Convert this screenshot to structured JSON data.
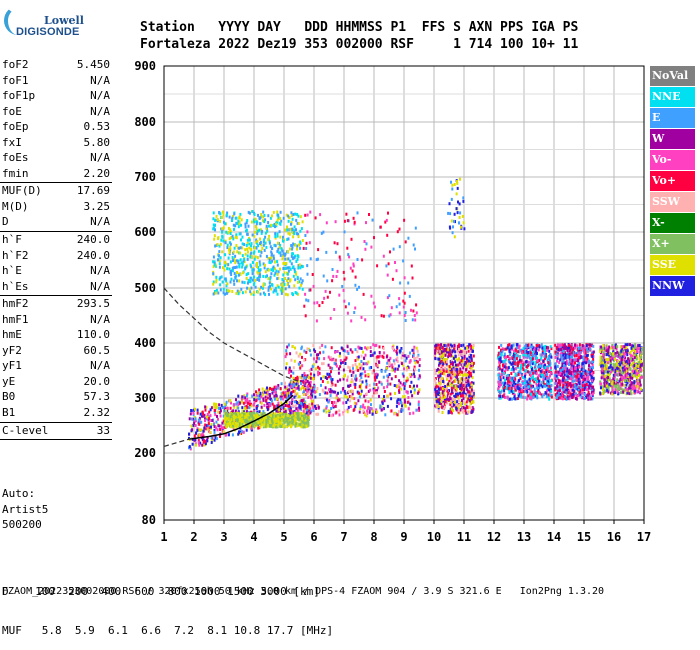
{
  "logo": {
    "line1": "Lowell",
    "line2": "DIGISONDE"
  },
  "header": {
    "line1": "Station   YYYY DAY   DDD HHMMSS P1  FFS S AXN PPS IGA PS",
    "line2": "Fortaleza 2022 Dez19 353 002000 RSF     1 714 100 10+ 11"
  },
  "params": [
    {
      "name": "foF2",
      "value": "5.450"
    },
    {
      "name": "foF1",
      "value": "N/A"
    },
    {
      "name": "foF1p",
      "value": "N/A"
    },
    {
      "name": "foE",
      "value": "N/A"
    },
    {
      "name": "foEp",
      "value": "0.53"
    },
    {
      "name": "fxI",
      "value": "5.80"
    },
    {
      "name": "foEs",
      "value": "N/A"
    },
    {
      "name": "fmin",
      "value": "2.20"
    },
    {
      "sep": true
    },
    {
      "name": "MUF(D)",
      "value": "17.69"
    },
    {
      "name": "M(D)",
      "value": "3.25"
    },
    {
      "name": "D",
      "value": "N/A"
    },
    {
      "sep": true
    },
    {
      "name": "h`F",
      "value": "240.0"
    },
    {
      "name": "h`F2",
      "value": "240.0"
    },
    {
      "name": "h`E",
      "value": "N/A"
    },
    {
      "name": "h`Es",
      "value": "N/A"
    },
    {
      "sep": true
    },
    {
      "name": "hmF2",
      "value": "293.5"
    },
    {
      "name": "hmF1",
      "value": "N/A"
    },
    {
      "name": "hmE",
      "value": "110.0"
    },
    {
      "name": "yF2",
      "value": "60.5"
    },
    {
      "name": "yF1",
      "value": "N/A"
    },
    {
      "name": "yE",
      "value": "20.0"
    },
    {
      "name": "B0",
      "value": "57.3"
    },
    {
      "name": "B1",
      "value": "2.32"
    },
    {
      "sep": true
    },
    {
      "name": "C-level",
      "value": "33"
    },
    {
      "sep": true
    }
  ],
  "auto": {
    "line1": "Auto:",
    "line2": "Artist5",
    "line3": "500200"
  },
  "legend": [
    {
      "label": "NoVal",
      "color": "#808080"
    },
    {
      "label": "NNE",
      "color": "#00e0f0"
    },
    {
      "label": "E",
      "color": "#40a0ff"
    },
    {
      "label": "W",
      "color": "#a000a0"
    },
    {
      "label": "Vo-",
      "color": "#ff40c0"
    },
    {
      "label": "Vo+",
      "color": "#ff0040"
    },
    {
      "label": "SSW",
      "color": "#ffb0b0"
    },
    {
      "label": "X-",
      "color": "#008000"
    },
    {
      "label": "X+",
      "color": "#80c060"
    },
    {
      "label": "SSE",
      "color": "#e0e000"
    },
    {
      "label": "NNW",
      "color": "#2020e0"
    }
  ],
  "footer": {
    "line1": "D    100  200  400  600  800 1000 1500 3000 [km]",
    "line2": "MUF   5.8  5.9  6.1  6.6  7.2  8.1 10.8 17.7 [MHz]",
    "line3": "FZAOM_2022353002000.RSF / 320fx256h 50 kHz 5.0 km / DPS-4 FZAOM 904 / 3.9 S 321.6 E   Ion2Png 1.3.20"
  },
  "chart_data": {
    "type": "scatter",
    "title": "",
    "xlabel": "",
    "ylabel": "",
    "xlim": [
      1,
      17
    ],
    "ylim": [
      80,
      900
    ],
    "x_ticks": [
      "1",
      "2",
      "3",
      "4",
      "5",
      "6",
      "7",
      "8",
      "9",
      "10",
      "11",
      "12",
      "13",
      "14",
      "15",
      "16",
      "17"
    ],
    "y_ticks": [
      "80",
      "200",
      "300",
      "400",
      "500",
      "600",
      "700",
      "800",
      "900"
    ],
    "y_tick_values": [
      80,
      200,
      300,
      400,
      500,
      600,
      700,
      800,
      900
    ],
    "grid": true,
    "clusters": [
      {
        "name": "F-trace",
        "x": [
          1.8,
          6.0
        ],
        "y": [
          230,
          340
        ],
        "colors": [
          "#ff0040",
          "#2020e0",
          "#40a0ff",
          "#ff40c0",
          "#a000a0",
          "#e0e000"
        ]
      },
      {
        "name": "F-trace-low",
        "x": [
          3.0,
          5.8
        ],
        "y": [
          250,
          275
        ],
        "colors": [
          "#e0e000",
          "#80c060"
        ]
      },
      {
        "name": "spread-F",
        "x": [
          5.0,
          9.5
        ],
        "y": [
          270,
          400
        ],
        "colors": [
          "#ff0040",
          "#ff40c0",
          "#a000a0",
          "#40a0ff",
          "#2020e0",
          "#ffb0b0",
          "#e0e000"
        ]
      },
      {
        "name": "F-block-10",
        "x": [
          10.0,
          11.3
        ],
        "y": [
          275,
          400
        ],
        "colors": [
          "#ffb0b0",
          "#a000a0",
          "#2020e0",
          "#e0e000",
          "#ff0040"
        ]
      },
      {
        "name": "F-block-12",
        "x": [
          12.1,
          13.9
        ],
        "y": [
          300,
          400
        ],
        "colors": [
          "#2020e0",
          "#40a0ff",
          "#ff0040",
          "#00e0f0",
          "#ff40c0"
        ]
      },
      {
        "name": "F-block-14",
        "x": [
          14.0,
          15.3
        ],
        "y": [
          300,
          400
        ],
        "colors": [
          "#2020e0",
          "#40a0ff",
          "#a000a0",
          "#ff0040",
          "#ff40c0"
        ]
      },
      {
        "name": "F-block-16",
        "x": [
          15.5,
          16.9
        ],
        "y": [
          310,
          400
        ],
        "colors": [
          "#e0e000",
          "#ff40c0",
          "#a000a0",
          "#2020e0",
          "#80c060"
        ]
      },
      {
        "name": "2F-echo",
        "x": [
          2.6,
          5.6
        ],
        "y": [
          490,
          640
        ],
        "colors": [
          "#40a0ff",
          "#00e0f0",
          "#e0e000"
        ]
      },
      {
        "name": "2F-echo-sparse",
        "x": [
          5.6,
          9.5
        ],
        "y": [
          440,
          640
        ],
        "colors": [
          "#40a0ff",
          "#ff0040",
          "#ff40c0"
        ]
      },
      {
        "name": "far-echo-10",
        "x": [
          10.4,
          11.0
        ],
        "y": [
          590,
          700
        ],
        "colors": [
          "#40a0ff",
          "#2020e0",
          "#e0e000"
        ]
      }
    ],
    "model_curve": {
      "name": "dashed-virtual-height",
      "x": [
        1.0,
        1.5,
        2.0,
        2.5,
        3.0,
        3.5,
        4.0,
        4.5,
        5.0,
        5.5
      ],
      "y": [
        500,
        470,
        445,
        420,
        400,
        385,
        370,
        355,
        340,
        330
      ]
    },
    "profile_curve": {
      "name": "solid-trace",
      "x": [
        1.8,
        2.5,
        3.0,
        3.5,
        4.0,
        4.5,
        5.0,
        5.3
      ],
      "y": [
        225,
        230,
        235,
        245,
        258,
        272,
        290,
        305
      ]
    },
    "lower_dashed": {
      "x": [
        1.0,
        1.5,
        2.0
      ],
      "y": [
        212,
        220,
        228
      ]
    }
  }
}
